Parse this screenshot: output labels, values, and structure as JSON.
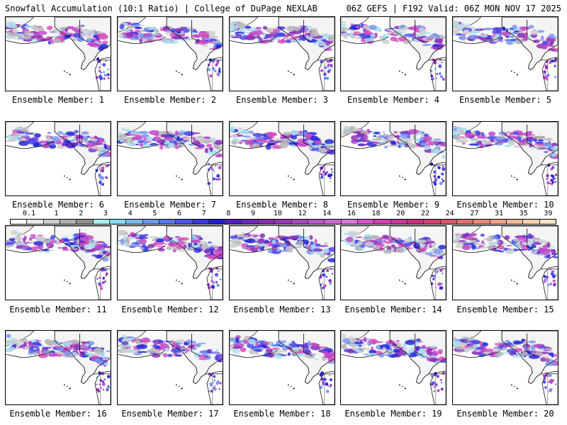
{
  "header": {
    "left": "Snowfall Accumulation (10:1 Ratio) | College of DuPage NEXLAB",
    "right": "06Z GEFS | F192 Valid: 06Z MON NOV 17 2025"
  },
  "panels": [
    {
      "label": "Ensemble Member: 1"
    },
    {
      "label": "Ensemble Member: 2"
    },
    {
      "label": "Ensemble Member: 3"
    },
    {
      "label": "Ensemble Member: 4"
    },
    {
      "label": "Ensemble Member: 5"
    },
    {
      "label": "Ensemble Member: 6"
    },
    {
      "label": "Ensemble Member: 7"
    },
    {
      "label": "Ensemble Member: 8"
    },
    {
      "label": "Ensemble Member: 9"
    },
    {
      "label": "Ensemble Member: 10"
    },
    {
      "label": "Ensemble Member: 11"
    },
    {
      "label": "Ensemble Member: 12"
    },
    {
      "label": "Ensemble Member: 13"
    },
    {
      "label": "Ensemble Member: 14"
    },
    {
      "label": "Ensemble Member: 15"
    },
    {
      "label": "Ensemble Member: 16"
    },
    {
      "label": "Ensemble Member: 17"
    },
    {
      "label": "Ensemble Member: 18"
    },
    {
      "label": "Ensemble Member: 19"
    },
    {
      "label": "Ensemble Member: 20"
    }
  ],
  "colorbar": {
    "labels": [
      "0.1",
      "1",
      "2",
      "3",
      "4",
      "5",
      "6",
      "7",
      "8",
      "9",
      "10",
      "12",
      "14",
      "16",
      "18",
      "20",
      "22",
      "24",
      "27",
      "31",
      "35",
      "39"
    ],
    "colors": [
      "#ffffff",
      "#e8e8e8",
      "#cccccc",
      "#b0b0b0",
      "#909090",
      "#a8f0f0",
      "#88d8f0",
      "#78b8f0",
      "#6898e8",
      "#5878e8",
      "#4858e8",
      "#3838e0",
      "#2020d0",
      "#5020c0",
      "#7028b8",
      "#8830b0",
      "#9838b8",
      "#a848c0",
      "#b858c8",
      "#c868d0",
      "#d878d8",
      "#d850c8",
      "#d040b0",
      "#c83898",
      "#c83080",
      "#d04070",
      "#d85868",
      "#e07070",
      "#e88878",
      "#f0a088",
      "#f0b898",
      "#f8d0b0",
      "#f8e4c8"
    ]
  }
}
